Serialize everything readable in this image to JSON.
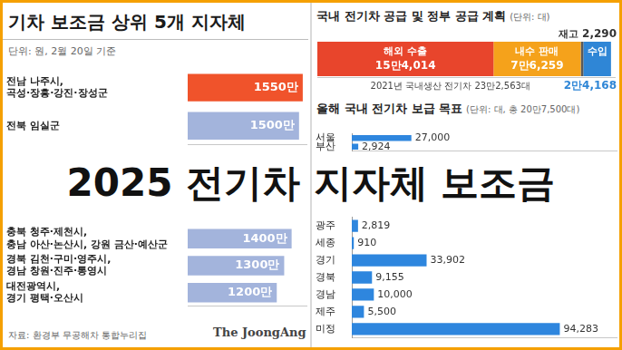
{
  "overlay_title": "2025 전기차 지자체 보조금",
  "chart_data": [
    {
      "type": "bar",
      "orientation": "horizontal",
      "title": "기차 보조금 상위 5개 지자체",
      "subtitle": "단위: 원, 2월 20일 기준",
      "categories": [
        "전남 나주시, 곡성·장흥·강진·장성군",
        "전북 임실군",
        "충북 청주·제천시, 충남 아산·논산시, 강원 금산·예산군",
        "경북 김천·구미·영주시, 경남 창원·진주·통영시",
        "대전광역시, 경기 평택·오산시"
      ],
      "values": [
        15500000,
        15000000,
        14000000,
        13000000,
        12000000
      ],
      "value_labels": [
        "1550만",
        "1500만",
        "1400만",
        "1300만",
        "1200만"
      ],
      "colors": [
        "#f0532b",
        "#a3b4dc",
        "#a3b4dc",
        "#a3b4dc",
        "#a3b4dc"
      ],
      "xlim": [
        0,
        16000000
      ],
      "data_labels": true,
      "tick_labels": "y",
      "grid": false,
      "source": "자료: 환경부 무공해차 통합누리집",
      "publisher": "The JoongAng"
    },
    {
      "type": "bar",
      "orientation": "horizontal",
      "stacked": true,
      "title": "국내 전기차 공급 및 정부 공급 계획",
      "subtitle": "(단위: 대)",
      "categories": [
        null
      ],
      "series": [
        {
          "name": "해외 수출",
          "color": "#e8452c",
          "values": [
            154014
          ],
          "value_labels": [
            "15만4,014"
          ]
        },
        {
          "name": "내수 판매",
          "color": "#f5a21b",
          "values": [
            76259
          ],
          "value_labels": [
            "7만6,259"
          ]
        },
        {
          "name": "재고",
          "color": "#5a5a5a",
          "values": [
            2290
          ],
          "value_labels": [
            "2,290"
          ]
        },
        {
          "name": "수입",
          "color": "#2f86d6",
          "values": [
            24168
          ],
          "value_labels": [
            "2만4,168"
          ]
        }
      ],
      "xlim": [
        0,
        260000
      ],
      "note": "2021년 국내생산 전기차 23만2,563대",
      "data_labels": true,
      "tick_labels": false,
      "grid": false
    },
    {
      "type": "bar",
      "orientation": "horizontal",
      "title": "올해 국내 전기차 보급 목표",
      "subtitle": "(단위: 대, 총 20만7,500대)",
      "categories": [
        "서울",
        "부산",
        "광주",
        "세종",
        "경기",
        "경북",
        "경남",
        "제주",
        "미정"
      ],
      "values": [
        27000,
        2924,
        2819,
        910,
        33902,
        9155,
        10000,
        5500,
        94283
      ],
      "value_labels": [
        "27,000",
        "2,924",
        "2,819",
        "910",
        "33,902",
        "9,155",
        "10,000",
        "5,500",
        "94,283"
      ],
      "color": "#2e86de",
      "xlim": [
        0,
        120000
      ],
      "data_labels": true,
      "tick_labels": "y",
      "grid": false
    }
  ]
}
